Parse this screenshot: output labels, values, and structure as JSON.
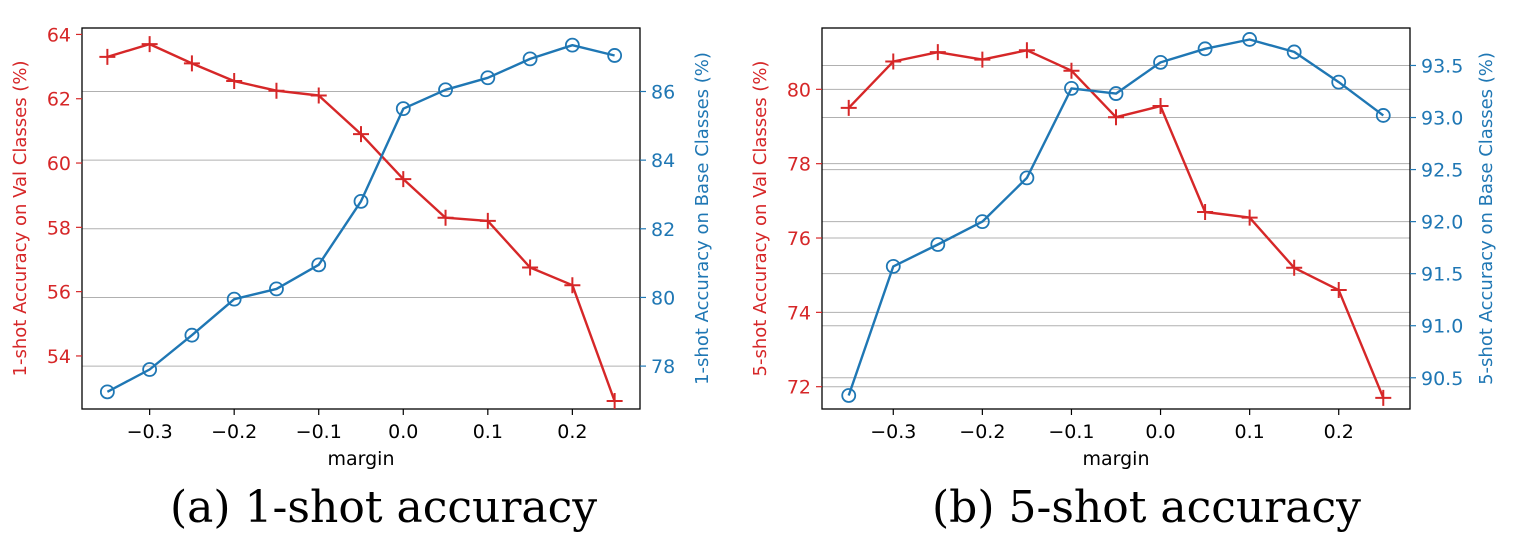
{
  "colors": {
    "left_series": "#d62728",
    "right_series": "#1f77b4",
    "grid": "#b0b0b0",
    "axis": "#000000"
  },
  "chart_data": [
    {
      "type": "line",
      "caption": "(a) 1-shot accuracy",
      "xlabel": "margin",
      "x": [
        -0.35,
        -0.3,
        -0.25,
        -0.2,
        -0.15,
        -0.1,
        -0.05,
        0.0,
        0.05,
        0.1,
        0.15,
        0.2,
        0.25
      ],
      "xlim": [
        -0.38,
        0.28
      ],
      "xticks": [
        -0.3,
        -0.2,
        -0.1,
        0.0,
        0.1,
        0.2
      ],
      "xtick_labels": [
        "−0.3",
        "−0.2",
        "−0.1",
        "0.0",
        "0.1",
        "0.2"
      ],
      "grid": "horizontal, right axis",
      "series": [
        {
          "axis": "left",
          "ylabel": "1-shot Accuracy on Val Classes (%)",
          "marker": "plus",
          "values": [
            63.3,
            63.7,
            63.1,
            62.55,
            62.25,
            62.1,
            60.9,
            59.5,
            58.3,
            58.2,
            56.75,
            56.2,
            52.6
          ],
          "ylim": [
            52.35,
            64.2
          ],
          "yticks": [
            54,
            56,
            58,
            60,
            62,
            64
          ],
          "ytick_labels": [
            "54",
            "56",
            "58",
            "60",
            "62",
            "64"
          ]
        },
        {
          "axis": "right",
          "ylabel": "1-shot Accuracy on Base Classes (%)",
          "marker": "circle",
          "values": [
            77.25,
            77.9,
            78.9,
            79.95,
            80.25,
            80.95,
            82.8,
            85.5,
            86.05,
            86.4,
            86.95,
            87.35,
            87.05
          ],
          "ylim": [
            76.75,
            87.85
          ],
          "yticks": [
            78,
            80,
            82,
            84,
            86
          ],
          "ytick_labels": [
            "78",
            "80",
            "82",
            "84",
            "86"
          ]
        }
      ]
    },
    {
      "type": "line",
      "caption": "(b) 5-shot accuracy",
      "xlabel": "margin",
      "x": [
        -0.35,
        -0.3,
        -0.25,
        -0.2,
        -0.15,
        -0.1,
        -0.05,
        0.0,
        0.05,
        0.1,
        0.15,
        0.2,
        0.25
      ],
      "xlim": [
        -0.38,
        0.28
      ],
      "xticks": [
        -0.3,
        -0.2,
        -0.1,
        0.0,
        0.1,
        0.2
      ],
      "xtick_labels": [
        "−0.3",
        "−0.2",
        "−0.1",
        "0.0",
        "0.1",
        "0.2"
      ],
      "grid": "horizontal, both axes",
      "series": [
        {
          "axis": "left",
          "ylabel": "5-shot Accuracy on Val Classes (%)",
          "marker": "plus",
          "values": [
            79.5,
            80.75,
            81.0,
            80.8,
            81.05,
            80.5,
            79.25,
            79.55,
            76.7,
            76.55,
            75.2,
            74.6,
            71.7
          ],
          "ylim": [
            71.4,
            81.65
          ],
          "yticks": [
            72,
            74,
            76,
            78,
            80
          ],
          "ytick_labels": [
            "72",
            "74",
            "76",
            "78",
            "80"
          ]
        },
        {
          "axis": "right",
          "ylabel": "5-shot Accuracy on Base Classes (%)",
          "marker": "circle",
          "values": [
            90.33,
            91.57,
            91.78,
            92.0,
            92.42,
            93.28,
            93.23,
            93.53,
            93.66,
            93.75,
            93.63,
            93.34,
            93.02
          ],
          "ylim": [
            90.2,
            93.86
          ],
          "yticks": [
            90.5,
            91.0,
            91.5,
            92.0,
            92.5,
            93.0,
            93.5
          ],
          "ytick_labels": [
            "90.5",
            "91.0",
            "91.5",
            "92.0",
            "92.5",
            "93.0",
            "93.5"
          ]
        }
      ]
    }
  ]
}
